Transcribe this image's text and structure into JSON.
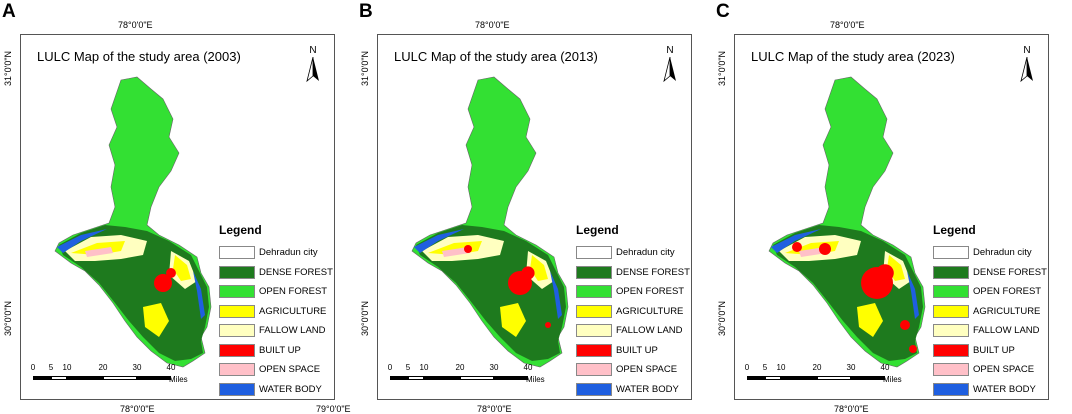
{
  "panels": [
    {
      "letter": "A",
      "title": "LULC Map of the study area (2003)",
      "coord_top": "78°0'0\"E",
      "coord_bottom": "78°0'0\"E",
      "coord_bottom_right": "79°0'0\"E",
      "lat_top": "31°0'0\"N",
      "lat_bottom": "30°0'0\"N",
      "builtup_level": "low"
    },
    {
      "letter": "B",
      "title": "LULC Map of the study area (2013)",
      "coord_top": "78°0'0\"E",
      "coord_bottom": "78°0'0\"E",
      "lat_top": "31°0'0\"N",
      "lat_bottom": "30°0'0\"N",
      "builtup_level": "medium"
    },
    {
      "letter": "C",
      "title": "LULC Map of the study area (2023)",
      "coord_top": "78°0'0\"E",
      "coord_bottom": "78°0'0\"E",
      "lat_top": "31°0'0\"N",
      "lat_bottom": "30°0'0\"N",
      "builtup_level": "high"
    }
  ],
  "north_label": "N",
  "legend": {
    "title": "Legend",
    "items": [
      {
        "label": "Dehradun city",
        "color": "#ffffff"
      },
      {
        "label": "DENSE FOREST",
        "color": "#1e7a1e"
      },
      {
        "label": "OPEN FOREST",
        "color": "#33e033"
      },
      {
        "label": "AGRICULTURE",
        "color": "#ffff00"
      },
      {
        "label": "FALLOW LAND",
        "color": "#ffffc0"
      },
      {
        "label": "BUILT UP",
        "color": "#ff0000"
      },
      {
        "label": "OPEN SPACE",
        "color": "#ffc0c8"
      },
      {
        "label": "WATER BODY",
        "color": "#1f5fe0"
      }
    ]
  },
  "scale": {
    "ticks": [
      "0",
      "5",
      "10",
      "20",
      "30",
      "40"
    ],
    "units": "Miles"
  }
}
